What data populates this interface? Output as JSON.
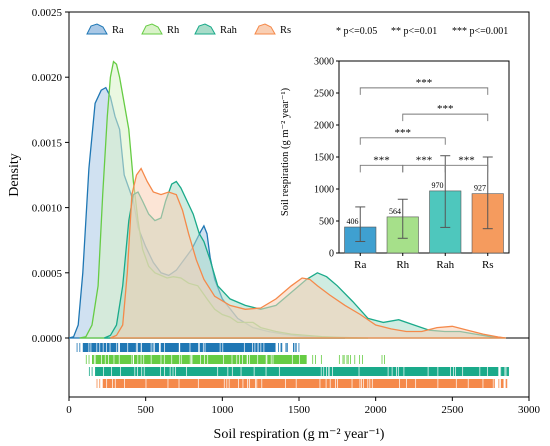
{
  "chart_data": [
    {
      "type": "area",
      "title": "",
      "xlabel": "Soil respiration (g m⁻² year⁻¹)",
      "ylabel": "Density",
      "xlim": [
        0,
        3000
      ],
      "ylim": [
        0,
        0.0025
      ],
      "xticks": [
        "0",
        "500",
        "1000",
        "1500",
        "2000",
        "2500",
        "3000"
      ],
      "yticks": [
        "0.0000",
        "0.0005",
        "0.0010",
        "0.0015",
        "0.0020",
        "0.0025"
      ],
      "legend_position": "top-left",
      "grid": false,
      "series": [
        {
          "name": "Ra",
          "color": "#1f77b4",
          "fill": "#a9c8e6",
          "points": [
            [
              0,
              0
            ],
            [
              30,
              1e-05
            ],
            [
              60,
              0.0001
            ],
            [
              90,
              0.0005
            ],
            [
              130,
              0.0013
            ],
            [
              170,
              0.0018
            ],
            [
              210,
              0.0019
            ],
            [
              240,
              0.00192
            ],
            [
              270,
              0.00185
            ],
            [
              300,
              0.0017
            ],
            [
              330,
              0.0016
            ],
            [
              360,
              0.00125
            ],
            [
              390,
              0.00115
            ],
            [
              420,
              0.00105
            ],
            [
              450,
              0.00085
            ],
            [
              500,
              0.0007
            ],
            [
              550,
              0.00058
            ],
            [
              600,
              0.0005
            ],
            [
              650,
              0.00048
            ],
            [
              700,
              0.00052
            ],
            [
              750,
              0.0006
            ],
            [
              800,
              0.00068
            ],
            [
              830,
              0.00075
            ],
            [
              860,
              0.00082
            ],
            [
              880,
              0.00086
            ],
            [
              900,
              0.0008
            ],
            [
              920,
              0.00062
            ],
            [
              950,
              0.00045
            ],
            [
              1000,
              0.0003
            ],
            [
              1100,
              0.00015
            ],
            [
              1200,
              8e-05
            ],
            [
              1300,
              5e-05
            ],
            [
              1400,
              3e-05
            ],
            [
              1500,
              1.5e-05
            ],
            [
              1600,
              5e-06
            ],
            [
              1700,
              2e-06
            ],
            [
              1800,
              0
            ]
          ]
        },
        {
          "name": "Rh",
          "color": "#66cc44",
          "fill": "#d9f2c9",
          "points": [
            [
              70,
              0
            ],
            [
              110,
              1e-05
            ],
            [
              150,
              0.0001
            ],
            [
              190,
              0.0004
            ],
            [
              220,
              0.0011
            ],
            [
              250,
              0.0017
            ],
            [
              270,
              0.002
            ],
            [
              290,
              0.00212
            ],
            [
              310,
              0.0021
            ],
            [
              330,
              0.002
            ],
            [
              360,
              0.0018
            ],
            [
              390,
              0.0016
            ],
            [
              420,
              0.0012
            ],
            [
              450,
              0.0009
            ],
            [
              480,
              0.00068
            ],
            [
              520,
              0.00055
            ],
            [
              560,
              0.0005
            ],
            [
              600,
              0.00048
            ],
            [
              640,
              0.00046
            ],
            [
              680,
              0.00047
            ],
            [
              730,
              0.00046
            ],
            [
              780,
              0.00042
            ],
            [
              840,
              0.0004
            ],
            [
              900,
              0.0003
            ],
            [
              950,
              0.00022
            ],
            [
              1000,
              0.00018
            ],
            [
              1050,
              0.00016
            ],
            [
              1100,
              0.00012
            ],
            [
              1200,
              0.00012
            ],
            [
              1250,
              8e-05
            ],
            [
              1350,
              5e-05
            ],
            [
              1450,
              3e-05
            ],
            [
              1550,
              2e-05
            ],
            [
              1650,
              1e-05
            ],
            [
              1750,
              5e-06
            ],
            [
              1850,
              2e-06
            ],
            [
              1950,
              0
            ]
          ]
        },
        {
          "name": "Rah",
          "color": "#1aaa8a",
          "fill": "#a8dcc9",
          "points": [
            [
              230,
              0
            ],
            [
              270,
              2e-05
            ],
            [
              310,
              0.0001
            ],
            [
              350,
              0.0004
            ],
            [
              390,
              0.0009
            ],
            [
              420,
              0.0011
            ],
            [
              450,
              0.00112
            ],
            [
              480,
              0.00105
            ],
            [
              520,
              0.00095
            ],
            [
              560,
              0.0009
            ],
            [
              600,
              0.00092
            ],
            [
              630,
              0.00105
            ],
            [
              670,
              0.00118
            ],
            [
              700,
              0.0012
            ],
            [
              730,
              0.00115
            ],
            [
              770,
              0.00105
            ],
            [
              810,
              0.00095
            ],
            [
              850,
              0.0008
            ],
            [
              880,
              0.00074
            ],
            [
              920,
              0.0006
            ],
            [
              970,
              0.0004
            ],
            [
              1050,
              0.0003
            ],
            [
              1150,
              0.00025
            ],
            [
              1250,
              0.00022
            ],
            [
              1350,
              0.00025
            ],
            [
              1450,
              0.00035
            ],
            [
              1550,
              0.00045
            ],
            [
              1620,
              0.0005
            ],
            [
              1680,
              0.00047
            ],
            [
              1750,
              0.0004
            ],
            [
              1850,
              0.00028
            ],
            [
              1950,
              0.00015
            ],
            [
              2050,
              0.00012
            ],
            [
              2150,
              0.00014
            ],
            [
              2250,
              0.0001
            ],
            [
              2350,
              6e-05
            ],
            [
              2450,
              5e-05
            ],
            [
              2550,
              5e-05
            ],
            [
              2650,
              3e-05
            ],
            [
              2750,
              1e-05
            ],
            [
              2850,
              0
            ]
          ]
        },
        {
          "name": "Rs",
          "color": "#f5894a",
          "fill": "#f9cfb4",
          "points": [
            [
              270,
              0
            ],
            [
              310,
              2e-05
            ],
            [
              350,
              0.0001
            ],
            [
              380,
              0.0005
            ],
            [
              410,
              0.0011
            ],
            [
              440,
              0.00125
            ],
            [
              470,
              0.0013
            ],
            [
              510,
              0.0012
            ],
            [
              550,
              0.00112
            ],
            [
              600,
              0.0011
            ],
            [
              650,
              0.00112
            ],
            [
              700,
              0.0011
            ],
            [
              740,
              0.00098
            ],
            [
              780,
              0.0008
            ],
            [
              830,
              0.0006
            ],
            [
              880,
              0.00045
            ],
            [
              950,
              0.00032
            ],
            [
              1050,
              0.00025
            ],
            [
              1150,
              0.00022
            ],
            [
              1250,
              0.00023
            ],
            [
              1350,
              0.0003
            ],
            [
              1450,
              0.0004
            ],
            [
              1520,
              0.00046
            ],
            [
              1570,
              0.00045
            ],
            [
              1620,
              0.0004
            ],
            [
              1700,
              0.00033
            ],
            [
              1800,
              0.00025
            ],
            [
              1900,
              0.00018
            ],
            [
              2000,
              0.0001
            ],
            [
              2100,
              7e-05
            ],
            [
              2200,
              5e-05
            ],
            [
              2300,
              5e-05
            ],
            [
              2400,
              8e-05
            ],
            [
              2500,
              9e-05
            ],
            [
              2600,
              6e-05
            ],
            [
              2700,
              3e-05
            ],
            [
              2800,
              8e-06
            ],
            [
              2850,
              0
            ]
          ]
        }
      ],
      "rug": [
        {
          "name": "Ra",
          "color": "#1f77b4",
          "x_range": [
            50,
            1510
          ],
          "dense_to": 1350
        },
        {
          "name": "Rh",
          "color": "#66cc44",
          "x_range": [
            110,
            2150
          ],
          "dense_to": 1550
        },
        {
          "name": "Rah",
          "color": "#1aaa8a",
          "x_range": [
            130,
            2870
          ],
          "dense_to": 2800
        },
        {
          "name": "Rs",
          "color": "#f5894a",
          "x_range": [
            180,
            2860
          ],
          "dense_to": 2760
        }
      ]
    },
    {
      "type": "bar",
      "title": "",
      "xlabel": "",
      "ylabel": "Soil respiration (g m⁻² year⁻¹)",
      "ylim": [
        0,
        3000
      ],
      "yticks": [
        "0",
        "500",
        "1000",
        "1500",
        "2000",
        "2500",
        "3000"
      ],
      "categories": [
        "Ra",
        "Rh",
        "Rah",
        "Rs"
      ],
      "values": [
        406,
        564,
        970,
        927
      ],
      "value_labels": [
        "406",
        "564",
        "970",
        "927"
      ],
      "error_low": [
        180,
        230,
        400,
        380
      ],
      "error_high": [
        720,
        840,
        1520,
        1500
      ],
      "colors": [
        "#3fa0d0",
        "#a6e08a",
        "#4ec7bd",
        "#f59b5e"
      ],
      "significance": [
        {
          "pair": [
            "Ra",
            "Rh"
          ],
          "label": "***",
          "level": 1370
        },
        {
          "pair": [
            "Rh",
            "Rah"
          ],
          "label": "***",
          "level": 1370
        },
        {
          "pair": [
            "Rah",
            "Rs"
          ],
          "label": "***",
          "level": 1370
        },
        {
          "pair": [
            "Ra",
            "Rah"
          ],
          "label": "***",
          "level": 1800
        },
        {
          "pair": [
            "Rh",
            "Rs"
          ],
          "label": "***",
          "level": 2170
        },
        {
          "pair": [
            "Ra",
            "Rs"
          ],
          "label": "***",
          "level": 2580
        }
      ]
    }
  ],
  "significance_legend": {
    "p05": "* p<=0.05",
    "p01": "** p<=0.01",
    "p001": "*** p<=0.001"
  }
}
